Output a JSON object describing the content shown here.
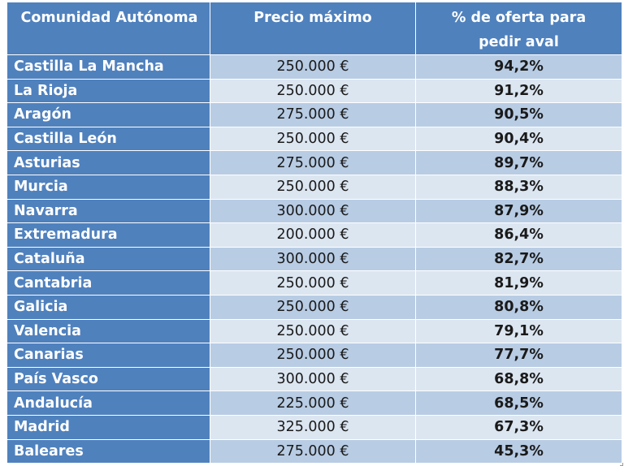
{
  "table": {
    "headers": [
      "Comunidad Autónoma",
      "Precio máximo",
      "% de oferta para pedir aval"
    ],
    "rows": [
      {
        "region": "Castilla La Mancha",
        "price": "250.000 €",
        "pct": "94,2%"
      },
      {
        "region": "La Rioja",
        "price": "250.000 €",
        "pct": "91,2%"
      },
      {
        "region": "Aragón",
        "price": "275.000 €",
        "pct": "90,5%"
      },
      {
        "region": "Castilla León",
        "price": "250.000 €",
        "pct": "90,4%"
      },
      {
        "region": "Asturias",
        "price": "275.000 €",
        "pct": "89,7%"
      },
      {
        "region": "Murcia",
        "price": "250.000 €",
        "pct": "88,3%"
      },
      {
        "region": "Navarra",
        "price": "300.000 €",
        "pct": "87,9%"
      },
      {
        "region": "Extremadura",
        "price": "200.000 €",
        "pct": "86,4%"
      },
      {
        "region": "Cataluña",
        "price": "300.000 €",
        "pct": "82,7%"
      },
      {
        "region": "Cantabria",
        "price": "250.000 €",
        "pct": "81,9%"
      },
      {
        "region": "Galicia",
        "price": "250.000 €",
        "pct": "80,8%"
      },
      {
        "region": "Valencia",
        "price": "250.000 €",
        "pct": "79,1%"
      },
      {
        "region": "Canarias",
        "price": "250.000 €",
        "pct": "77,7%"
      },
      {
        "region": "País Vasco",
        "price": "300.000 €",
        "pct": "68,8%"
      },
      {
        "region": "Andalucía",
        "price": "225.000 €",
        "pct": "68,5%"
      },
      {
        "region": "Madrid",
        "price": "325.000 €",
        "pct": "67,3%"
      },
      {
        "region": "Baleares",
        "price": "275.000 €",
        "pct": "45,3%"
      }
    ]
  },
  "colors": {
    "header_bg": "#4f81bd",
    "band_dark": "#b8cce4",
    "band_light": "#dce6f1"
  }
}
